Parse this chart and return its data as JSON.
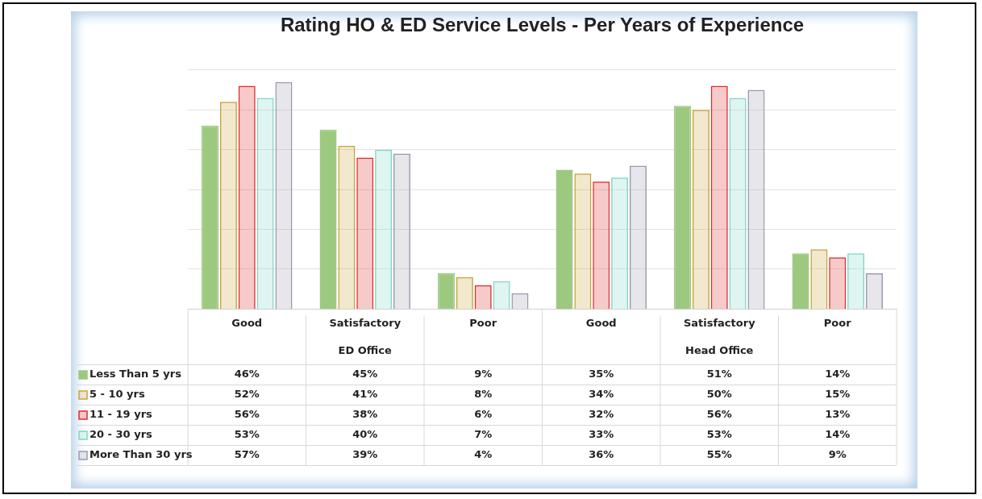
{
  "chart_data": {
    "type": "bar",
    "title": "Rating HO & ED Service Levels - Per Years of Experience",
    "categories": [
      "Good",
      "Satisfactory",
      "Poor",
      "Good",
      "Satisfactory",
      "Poor"
    ],
    "annotations": [
      "ED Office",
      "Head Office"
    ],
    "series": [
      {
        "name": "Less Than 5 yrs",
        "color": "#9cc97f",
        "values": [
          46,
          45,
          9,
          35,
          51,
          14
        ],
        "value_labels": [
          "46%",
          "45%",
          "9%",
          "35%",
          "51%",
          "14%"
        ]
      },
      {
        "name": "5 - 10 yrs",
        "color": "#c9a23a",
        "values": [
          52,
          41,
          8,
          34,
          50,
          15
        ],
        "value_labels": [
          "52%",
          "41%",
          "8%",
          "34%",
          "50%",
          "15%"
        ]
      },
      {
        "name": "11 - 19 yrs",
        "color": "#e02b2b",
        "values": [
          56,
          38,
          6,
          32,
          56,
          13
        ],
        "value_labels": [
          "56%",
          "38%",
          "6%",
          "32%",
          "56%",
          "13%"
        ]
      },
      {
        "name": "20 - 30 yrs",
        "color": "#7fd6c6",
        "values": [
          53,
          40,
          7,
          33,
          53,
          14
        ],
        "value_labels": [
          "53%",
          "40%",
          "7%",
          "33%",
          "53%",
          "14%"
        ]
      },
      {
        "name": "More Than 30 yrs",
        "color": "#9a9ab0",
        "values": [
          57,
          39,
          4,
          36,
          55,
          9
        ],
        "value_labels": [
          "57%",
          "39%",
          "4%",
          "36%",
          "55%",
          "9%"
        ]
      }
    ],
    "ylim": [
      0,
      60
    ],
    "yticks": [
      {
        "value": 0,
        "label": null
      },
      {
        "value": 10,
        "label": null
      },
      {
        "value": 20,
        "label": null
      },
      {
        "value": 30,
        "label": null
      },
      {
        "value": 40,
        "label": null
      },
      {
        "value": 50,
        "label": null
      },
      {
        "value": 60,
        "label": null
      }
    ],
    "grid": "y",
    "tick_labels": "x",
    "legend": "bottom left"
  }
}
